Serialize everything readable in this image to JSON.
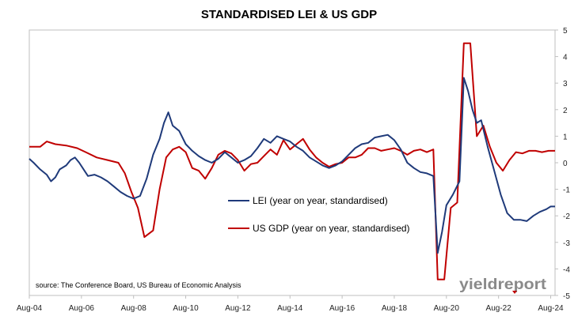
{
  "chart_data": {
    "type": "line",
    "title": "STANDARDISED LEI & US GDP",
    "xlabel": "",
    "ylabel": "",
    "x_ticks": [
      "Aug-04",
      "Aug-06",
      "Aug-08",
      "Aug-10",
      "Aug-12",
      "Aug-14",
      "Aug-16",
      "Aug-18",
      "Aug-20",
      "Aug-22",
      "Aug-24"
    ],
    "xlim": [
      "2004-08",
      "2024-10"
    ],
    "ylim": [
      -5,
      5
    ],
    "y_ticks": [
      5,
      4,
      3,
      2,
      1,
      0,
      -1,
      -2,
      -3,
      -4,
      -5
    ],
    "y_axis_side": "right",
    "grid": false,
    "legend_position": "center-right",
    "annotation": "source: The Conference Board, US Bureau of Economic Analysis",
    "brand": "yieldreport",
    "series": [
      {
        "name": "LEI (year on year, standardised)",
        "color": "#1f3a7a",
        "points": [
          [
            "2004-08",
            0.15
          ],
          [
            "2004-10",
            0.0
          ],
          [
            "2005-01",
            -0.25
          ],
          [
            "2005-04",
            -0.45
          ],
          [
            "2005-06",
            -0.7
          ],
          [
            "2005-08",
            -0.55
          ],
          [
            "2005-10",
            -0.25
          ],
          [
            "2006-01",
            -0.1
          ],
          [
            "2006-03",
            0.1
          ],
          [
            "2006-05",
            0.2
          ],
          [
            "2006-07",
            0.0
          ],
          [
            "2006-09",
            -0.25
          ],
          [
            "2006-11",
            -0.5
          ],
          [
            "2007-02",
            -0.45
          ],
          [
            "2007-05",
            -0.55
          ],
          [
            "2007-08",
            -0.7
          ],
          [
            "2007-11",
            -0.9
          ],
          [
            "2008-02",
            -1.1
          ],
          [
            "2008-05",
            -1.25
          ],
          [
            "2008-08",
            -1.35
          ],
          [
            "2008-11",
            -1.25
          ],
          [
            "2009-02",
            -0.6
          ],
          [
            "2009-05",
            0.3
          ],
          [
            "2009-08",
            0.9
          ],
          [
            "2009-10",
            1.5
          ],
          [
            "2009-12",
            1.9
          ],
          [
            "2010-02",
            1.4
          ],
          [
            "2010-05",
            1.2
          ],
          [
            "2010-08",
            0.7
          ],
          [
            "2010-11",
            0.45
          ],
          [
            "2011-02",
            0.25
          ],
          [
            "2011-05",
            0.1
          ],
          [
            "2011-08",
            0.0
          ],
          [
            "2011-11",
            0.15
          ],
          [
            "2012-02",
            0.4
          ],
          [
            "2012-05",
            0.2
          ],
          [
            "2012-08",
            0.0
          ],
          [
            "2012-11",
            0.1
          ],
          [
            "2013-02",
            0.25
          ],
          [
            "2013-05",
            0.55
          ],
          [
            "2013-08",
            0.9
          ],
          [
            "2013-11",
            0.75
          ],
          [
            "2014-02",
            1.0
          ],
          [
            "2014-05",
            0.9
          ],
          [
            "2014-08",
            0.8
          ],
          [
            "2014-11",
            0.6
          ],
          [
            "2015-02",
            0.45
          ],
          [
            "2015-05",
            0.2
          ],
          [
            "2015-08",
            0.05
          ],
          [
            "2015-11",
            -0.1
          ],
          [
            "2016-02",
            -0.2
          ],
          [
            "2016-05",
            -0.1
          ],
          [
            "2016-08",
            0.05
          ],
          [
            "2016-11",
            0.3
          ],
          [
            "2017-02",
            0.55
          ],
          [
            "2017-05",
            0.7
          ],
          [
            "2017-08",
            0.75
          ],
          [
            "2017-11",
            0.95
          ],
          [
            "2018-02",
            1.0
          ],
          [
            "2018-05",
            1.05
          ],
          [
            "2018-08",
            0.85
          ],
          [
            "2018-11",
            0.5
          ],
          [
            "2019-02",
            0.0
          ],
          [
            "2019-05",
            -0.2
          ],
          [
            "2019-08",
            -0.35
          ],
          [
            "2019-11",
            -0.4
          ],
          [
            "2020-02",
            -0.5
          ],
          [
            "2020-04",
            -3.4
          ],
          [
            "2020-06",
            -2.6
          ],
          [
            "2020-08",
            -1.6
          ],
          [
            "2020-11",
            -1.2
          ],
          [
            "2021-02",
            -0.7
          ],
          [
            "2021-04",
            3.2
          ],
          [
            "2021-06",
            2.7
          ],
          [
            "2021-08",
            2.0
          ],
          [
            "2021-10",
            1.5
          ],
          [
            "2021-12",
            1.6
          ],
          [
            "2022-03",
            0.6
          ],
          [
            "2022-06",
            -0.3
          ],
          [
            "2022-09",
            -1.2
          ],
          [
            "2022-12",
            -1.9
          ],
          [
            "2023-03",
            -2.15
          ],
          [
            "2023-06",
            -2.15
          ],
          [
            "2023-09",
            -2.2
          ],
          [
            "2023-12",
            -2.0
          ],
          [
            "2024-03",
            -1.85
          ],
          [
            "2024-06",
            -1.75
          ],
          [
            "2024-08",
            -1.65
          ],
          [
            "2024-10",
            -1.65
          ]
        ]
      },
      {
        "name": "US GDP (year on year, standardised)",
        "color": "#c00000",
        "points": [
          [
            "2004-08",
            0.6
          ],
          [
            "2005-01",
            0.6
          ],
          [
            "2005-04",
            0.8
          ],
          [
            "2005-08",
            0.7
          ],
          [
            "2006-01",
            0.65
          ],
          [
            "2006-06",
            0.55
          ],
          [
            "2006-10",
            0.4
          ],
          [
            "2007-03",
            0.2
          ],
          [
            "2007-08",
            0.1
          ],
          [
            "2008-01",
            0.0
          ],
          [
            "2008-04",
            -0.4
          ],
          [
            "2008-07",
            -1.1
          ],
          [
            "2008-10",
            -1.7
          ],
          [
            "2009-01",
            -2.8
          ],
          [
            "2009-05",
            -2.55
          ],
          [
            "2009-08",
            -1.0
          ],
          [
            "2009-11",
            0.2
          ],
          [
            "2010-02",
            0.5
          ],
          [
            "2010-05",
            0.6
          ],
          [
            "2010-08",
            0.4
          ],
          [
            "2010-11",
            -0.2
          ],
          [
            "2011-02",
            -0.3
          ],
          [
            "2011-05",
            -0.6
          ],
          [
            "2011-08",
            -0.2
          ],
          [
            "2011-11",
            0.3
          ],
          [
            "2012-02",
            0.45
          ],
          [
            "2012-05",
            0.35
          ],
          [
            "2012-08",
            0.1
          ],
          [
            "2012-11",
            -0.3
          ],
          [
            "2013-02",
            -0.05
          ],
          [
            "2013-05",
            0.0
          ],
          [
            "2013-08",
            0.25
          ],
          [
            "2013-11",
            0.5
          ],
          [
            "2014-02",
            0.3
          ],
          [
            "2014-05",
            0.85
          ],
          [
            "2014-08",
            0.5
          ],
          [
            "2014-11",
            0.7
          ],
          [
            "2015-02",
            0.9
          ],
          [
            "2015-05",
            0.5
          ],
          [
            "2015-08",
            0.2
          ],
          [
            "2015-11",
            0.0
          ],
          [
            "2016-02",
            -0.15
          ],
          [
            "2016-05",
            -0.05
          ],
          [
            "2016-08",
            0.0
          ],
          [
            "2016-11",
            0.2
          ],
          [
            "2017-02",
            0.2
          ],
          [
            "2017-05",
            0.3
          ],
          [
            "2017-08",
            0.55
          ],
          [
            "2017-11",
            0.55
          ],
          [
            "2018-02",
            0.45
          ],
          [
            "2018-05",
            0.5
          ],
          [
            "2018-08",
            0.55
          ],
          [
            "2018-11",
            0.45
          ],
          [
            "2019-02",
            0.3
          ],
          [
            "2019-05",
            0.45
          ],
          [
            "2019-08",
            0.5
          ],
          [
            "2019-11",
            0.4
          ],
          [
            "2020-02",
            0.5
          ],
          [
            "2020-04",
            -4.4
          ],
          [
            "2020-07",
            -4.4
          ],
          [
            "2020-10",
            -1.7
          ],
          [
            "2021-01",
            -1.5
          ],
          [
            "2021-04",
            4.5
          ],
          [
            "2021-07",
            4.5
          ],
          [
            "2021-10",
            1.0
          ],
          [
            "2022-01",
            1.4
          ],
          [
            "2022-04",
            0.6
          ],
          [
            "2022-07",
            0.0
          ],
          [
            "2022-10",
            -0.3
          ],
          [
            "2023-01",
            0.1
          ],
          [
            "2023-04",
            0.4
          ],
          [
            "2023-07",
            0.35
          ],
          [
            "2023-10",
            0.45
          ],
          [
            "2024-01",
            0.45
          ],
          [
            "2024-04",
            0.4
          ],
          [
            "2024-07",
            0.45
          ],
          [
            "2024-10",
            0.45
          ]
        ]
      }
    ]
  }
}
